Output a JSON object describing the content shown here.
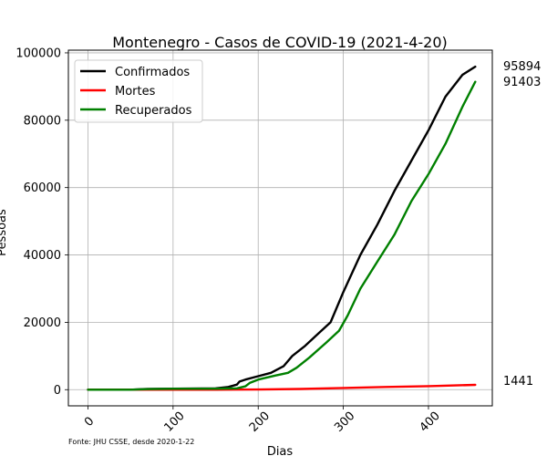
{
  "chart_data": {
    "type": "line",
    "title": "Montenegro - Casos de COVID-19 (2021-4-20)",
    "xlabel": "Dias",
    "ylabel": "Pessoas",
    "xlim": [
      -23,
      475
    ],
    "ylim": [
      -4800,
      100800
    ],
    "xticks": [
      0,
      100,
      200,
      300,
      400
    ],
    "yticks": [
      0,
      20000,
      40000,
      60000,
      80000,
      100000
    ],
    "grid": true,
    "legend_position": "top-left",
    "source": "Fonte: JHU CSSE, desde 2020-1-22",
    "series": [
      {
        "name": "Confirmados",
        "color": "#000000",
        "end_value": "95894",
        "points": [
          [
            0,
            0
          ],
          [
            50,
            0
          ],
          [
            70,
            200
          ],
          [
            100,
            300
          ],
          [
            150,
            400
          ],
          [
            165,
            800
          ],
          [
            175,
            1500
          ],
          [
            178,
            2400
          ],
          [
            185,
            3000
          ],
          [
            200,
            4000
          ],
          [
            215,
            5000
          ],
          [
            230,
            7000
          ],
          [
            240,
            10000
          ],
          [
            255,
            13000
          ],
          [
            270,
            16500
          ],
          [
            285,
            20000
          ],
          [
            300,
            29000
          ],
          [
            320,
            40000
          ],
          [
            340,
            49000
          ],
          [
            360,
            59000
          ],
          [
            380,
            68000
          ],
          [
            400,
            77000
          ],
          [
            420,
            87000
          ],
          [
            440,
            93500
          ],
          [
            455,
            95894
          ]
        ]
      },
      {
        "name": "Mortes",
        "color": "#ff0000",
        "end_value": "1441",
        "points": [
          [
            0,
            0
          ],
          [
            150,
            5
          ],
          [
            200,
            50
          ],
          [
            250,
            200
          ],
          [
            300,
            500
          ],
          [
            350,
            800
          ],
          [
            400,
            1050
          ],
          [
            455,
            1441
          ]
        ]
      },
      {
        "name": "Recuperados",
        "color": "#008000",
        "end_value": "91403",
        "points": [
          [
            0,
            0
          ],
          [
            50,
            0
          ],
          [
            70,
            150
          ],
          [
            100,
            250
          ],
          [
            150,
            300
          ],
          [
            175,
            400
          ],
          [
            185,
            1000
          ],
          [
            190,
            2000
          ],
          [
            200,
            3000
          ],
          [
            220,
            4200
          ],
          [
            235,
            5000
          ],
          [
            245,
            6500
          ],
          [
            260,
            9500
          ],
          [
            280,
            14000
          ],
          [
            295,
            17500
          ],
          [
            305,
            22000
          ],
          [
            320,
            30000
          ],
          [
            340,
            38000
          ],
          [
            360,
            46000
          ],
          [
            380,
            56000
          ],
          [
            400,
            64000
          ],
          [
            420,
            73000
          ],
          [
            440,
            84000
          ],
          [
            455,
            91403
          ]
        ]
      }
    ]
  }
}
